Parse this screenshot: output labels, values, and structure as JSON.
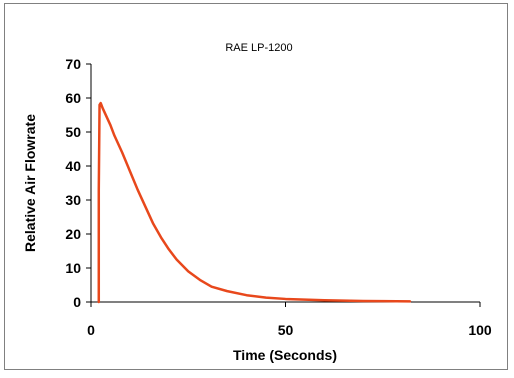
{
  "chart_data": {
    "type": "line",
    "title": "RAE LP-1200",
    "xlabel": "Time (Seconds)",
    "ylabel": "Relative Air Flowrate",
    "xlim": [
      0,
      100
    ],
    "ylim": [
      0,
      70
    ],
    "xticks": [
      "0",
      "50",
      "100"
    ],
    "yticks": [
      "0",
      "10",
      "20",
      "30",
      "40",
      "50",
      "60",
      "70"
    ],
    "grid": false,
    "legend": "none",
    "series": [
      {
        "color": "#e8481c",
        "x": [
          2,
          2,
          2.2,
          2.5,
          3,
          4,
          5,
          6,
          8,
          10,
          12,
          14,
          16,
          18,
          20,
          22,
          25,
          28,
          31,
          35,
          40,
          45,
          50,
          55,
          60,
          65,
          70,
          75,
          82
        ],
        "y": [
          0,
          33,
          58,
          58.5,
          57,
          54.5,
          52,
          49,
          44,
          38.5,
          33,
          28,
          23,
          19,
          15.5,
          12.5,
          9,
          6.5,
          4.5,
          3.2,
          2.0,
          1.3,
          0.9,
          0.7,
          0.5,
          0.4,
          0.3,
          0.25,
          0.2
        ]
      }
    ]
  }
}
